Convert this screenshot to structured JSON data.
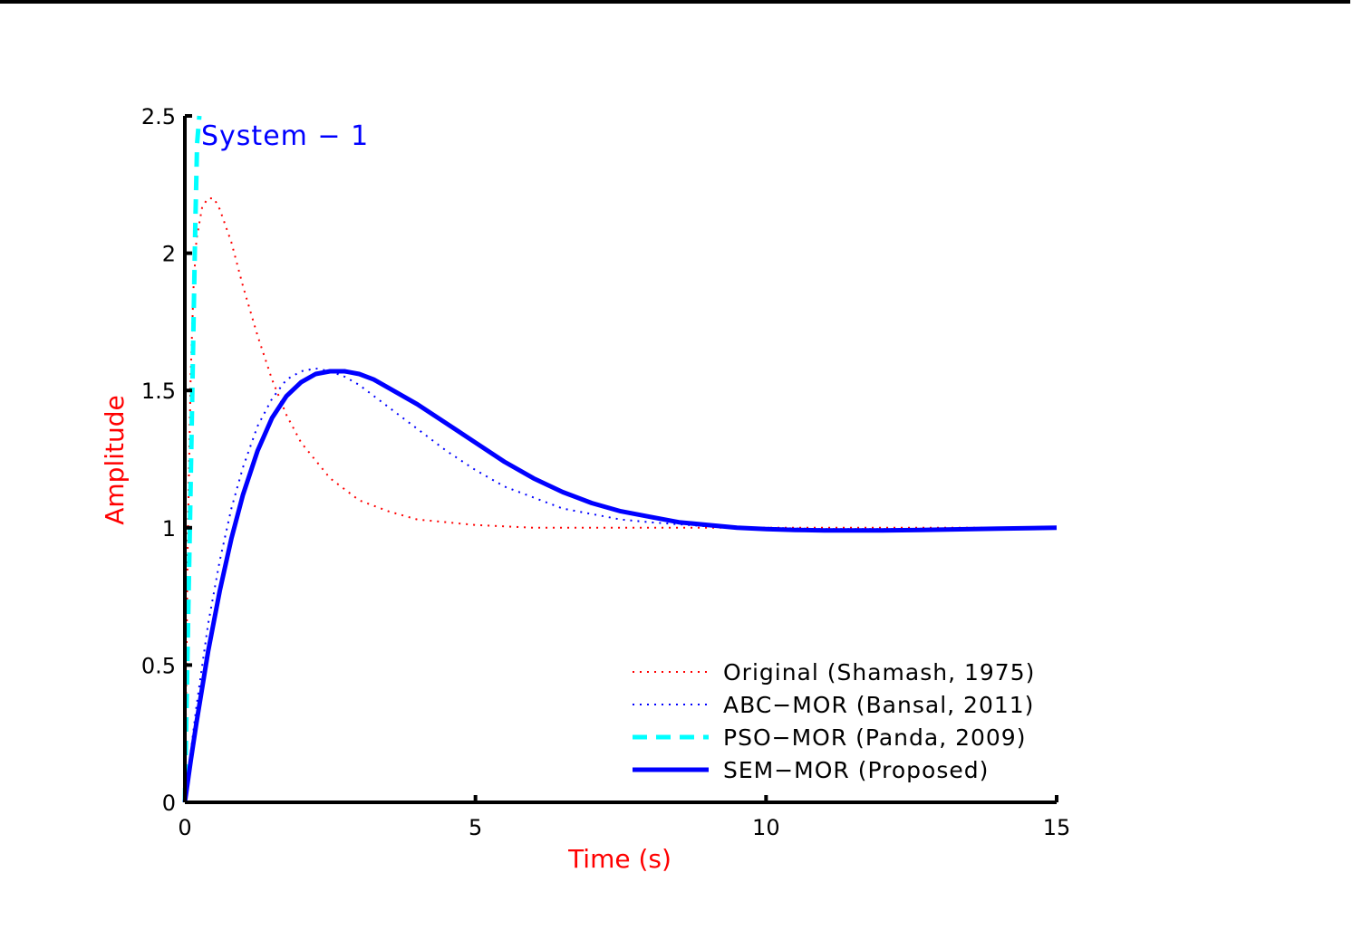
{
  "chart_data": {
    "type": "line",
    "title": "",
    "annotation": "System − 1",
    "xlabel": "Time (s)",
    "ylabel": "Amplitude",
    "xlim": [
      0,
      15
    ],
    "ylim": [
      0,
      2.5
    ],
    "xticks": [
      0,
      5,
      10,
      15
    ],
    "xtick_labels": [
      "0",
      "5",
      "10",
      "15"
    ],
    "yticks": [
      0,
      0.5,
      1,
      1.5,
      2,
      2.5
    ],
    "ytick_labels": [
      "0",
      "0.5",
      "1",
      "1.5",
      "2",
      "2.5"
    ],
    "grid": false,
    "legend_position": "bottom-right",
    "colors": {
      "axis": "#000000",
      "xlabel": "#ff0000",
      "ylabel": "#ff0000",
      "annotation": "#0000ff",
      "frame_top": "#000000"
    },
    "series": [
      {
        "name": "Original (Shamash, 1975)",
        "color": "#ff0000",
        "style": "dotted",
        "width": 2,
        "x": [
          0,
          0.05,
          0.1,
          0.15,
          0.2,
          0.3,
          0.4,
          0.5,
          0.6,
          0.8,
          1.0,
          1.25,
          1.5,
          1.75,
          2.0,
          2.5,
          3.0,
          3.5,
          4.0,
          4.5,
          5.0,
          5.5,
          6.0,
          7.0,
          8.0,
          9.0,
          10.0,
          11.0,
          12.0,
          13.0,
          14.0,
          15.0
        ],
        "y": [
          0,
          0.95,
          1.55,
          1.88,
          2.05,
          2.17,
          2.2,
          2.2,
          2.16,
          2.04,
          1.88,
          1.7,
          1.54,
          1.41,
          1.31,
          1.18,
          1.1,
          1.06,
          1.03,
          1.02,
          1.01,
          1.005,
          1.0,
          1.0,
          1.0,
          1.0,
          1.0,
          1.0,
          1.0,
          1.0,
          1.0,
          1.0
        ]
      },
      {
        "name": "ABC−MOR (Bansal, 2011)",
        "color": "#0000ff",
        "style": "dotted",
        "width": 2,
        "x": [
          0,
          0.1,
          0.2,
          0.4,
          0.6,
          0.8,
          1.0,
          1.25,
          1.5,
          1.75,
          2.0,
          2.25,
          2.5,
          2.75,
          3.0,
          3.5,
          4.0,
          4.5,
          5.0,
          5.5,
          6.0,
          6.5,
          7.0,
          7.5,
          8.0,
          9.0,
          10.0,
          11.0,
          12.0,
          13.0,
          14.0,
          15.0
        ],
        "y": [
          0,
          0.18,
          0.35,
          0.65,
          0.88,
          1.07,
          1.22,
          1.37,
          1.47,
          1.54,
          1.57,
          1.58,
          1.57,
          1.55,
          1.52,
          1.44,
          1.36,
          1.28,
          1.21,
          1.15,
          1.11,
          1.07,
          1.05,
          1.03,
          1.02,
          1.005,
          1.0,
          0.995,
          0.995,
          0.997,
          0.999,
          1.0
        ]
      },
      {
        "name": "PSO−MOR (Panda, 2009)",
        "color": "#00ffff",
        "style": "dashed",
        "width": 5,
        "x": [
          0,
          0.03,
          0.06,
          0.09,
          0.12,
          0.15,
          0.18,
          0.21,
          0.25
        ],
        "y": [
          0,
          0.35,
          0.7,
          1.05,
          1.4,
          1.75,
          2.1,
          2.4,
          2.5
        ]
      },
      {
        "name": "SEM−MOR (Proposed)",
        "color": "#0000ff",
        "style": "solid",
        "width": 5,
        "x": [
          0,
          0.1,
          0.2,
          0.4,
          0.6,
          0.8,
          1.0,
          1.25,
          1.5,
          1.75,
          2.0,
          2.25,
          2.5,
          2.75,
          3.0,
          3.25,
          3.5,
          4.0,
          4.5,
          5.0,
          5.5,
          6.0,
          6.5,
          7.0,
          7.5,
          8.0,
          8.5,
          9.0,
          9.5,
          10.0,
          10.5,
          11.0,
          11.5,
          12.0,
          13.0,
          14.0,
          15.0
        ],
        "y": [
          0,
          0.15,
          0.29,
          0.55,
          0.77,
          0.96,
          1.12,
          1.28,
          1.4,
          1.48,
          1.53,
          1.56,
          1.57,
          1.57,
          1.56,
          1.54,
          1.51,
          1.45,
          1.38,
          1.31,
          1.24,
          1.18,
          1.13,
          1.09,
          1.06,
          1.04,
          1.02,
          1.01,
          1.0,
          0.995,
          0.992,
          0.99,
          0.99,
          0.99,
          0.993,
          0.997,
          1.0
        ]
      }
    ]
  }
}
